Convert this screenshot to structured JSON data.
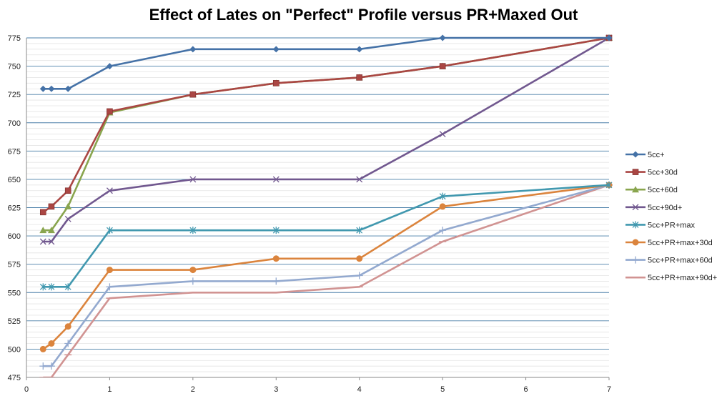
{
  "chart_data": {
    "type": "line",
    "title": "Effect of Lates on \"Perfect\" Profile versus PR+Maxed Out",
    "xlabel": "",
    "ylabel": "",
    "xlim": [
      0,
      7
    ],
    "ylim": [
      475,
      775
    ],
    "x_ticks": [
      0,
      1,
      2,
      3,
      4,
      5,
      6,
      7
    ],
    "y_ticks": [
      475,
      500,
      525,
      550,
      575,
      600,
      625,
      650,
      675,
      700,
      725,
      750,
      775
    ],
    "grid": true,
    "legend_position": "right",
    "series": [
      {
        "name": "5cc+",
        "color": "#4572A7",
        "marker": "diamond",
        "points": [
          [
            0.2,
            730
          ],
          [
            0.3,
            730
          ],
          [
            0.5,
            730
          ],
          [
            1,
            750
          ],
          [
            2,
            765
          ],
          [
            3,
            765
          ],
          [
            4,
            765
          ],
          [
            5,
            775
          ],
          [
            7,
            775
          ]
        ]
      },
      {
        "name": "5cc+30d",
        "color": "#AA4643",
        "marker": "square",
        "points": [
          [
            0.2,
            621
          ],
          [
            0.3,
            626
          ],
          [
            0.5,
            640
          ],
          [
            1,
            710
          ],
          [
            2,
            725
          ],
          [
            3,
            735
          ],
          [
            4,
            740
          ],
          [
            5,
            750
          ],
          [
            7,
            775
          ]
        ]
      },
      {
        "name": "5cc+60d",
        "color": "#89A54E",
        "marker": "triangle",
        "points": [
          [
            0.2,
            605
          ],
          [
            0.3,
            605
          ],
          [
            0.5,
            626
          ],
          [
            1,
            709
          ],
          [
            2,
            725
          ],
          [
            3,
            735
          ],
          [
            4,
            740
          ],
          [
            5,
            750
          ],
          [
            7,
            775
          ]
        ]
      },
      {
        "name": "5cc+90d+",
        "color": "#71588F",
        "marker": "x",
        "points": [
          [
            0.2,
            595
          ],
          [
            0.3,
            595
          ],
          [
            0.5,
            615
          ],
          [
            1,
            640
          ],
          [
            2,
            650
          ],
          [
            3,
            650
          ],
          [
            4,
            650
          ],
          [
            5,
            690
          ],
          [
            7,
            775
          ]
        ]
      },
      {
        "name": "5cc+PR+max",
        "color": "#4198AF",
        "marker": "star",
        "points": [
          [
            0.2,
            555
          ],
          [
            0.3,
            555
          ],
          [
            0.5,
            555
          ],
          [
            1,
            605
          ],
          [
            2,
            605
          ],
          [
            3,
            605
          ],
          [
            4,
            605
          ],
          [
            5,
            635
          ],
          [
            7,
            645
          ]
        ]
      },
      {
        "name": "5cc+PR+max+30d",
        "color": "#DB843D",
        "marker": "circle",
        "points": [
          [
            0.2,
            500
          ],
          [
            0.3,
            505
          ],
          [
            0.5,
            520
          ],
          [
            1,
            570
          ],
          [
            2,
            570
          ],
          [
            3,
            580
          ],
          [
            4,
            580
          ],
          [
            5,
            626
          ],
          [
            7,
            645
          ]
        ]
      },
      {
        "name": "5cc+PR+max+60d",
        "color": "#93A9CF",
        "marker": "plus",
        "points": [
          [
            0.2,
            485
          ],
          [
            0.3,
            485
          ],
          [
            0.5,
            505
          ],
          [
            1,
            555
          ],
          [
            2,
            560
          ],
          [
            3,
            560
          ],
          [
            4,
            565
          ],
          [
            5,
            605
          ],
          [
            7,
            645
          ]
        ]
      },
      {
        "name": "5cc+PR+max+90d+",
        "color": "#D19392",
        "marker": "dash",
        "points": [
          [
            0.2,
            475
          ],
          [
            0.3,
            475
          ],
          [
            0.5,
            495
          ],
          [
            1,
            545
          ],
          [
            2,
            550
          ],
          [
            3,
            550
          ],
          [
            4,
            555
          ],
          [
            5,
            595
          ],
          [
            7,
            645
          ]
        ]
      }
    ]
  }
}
